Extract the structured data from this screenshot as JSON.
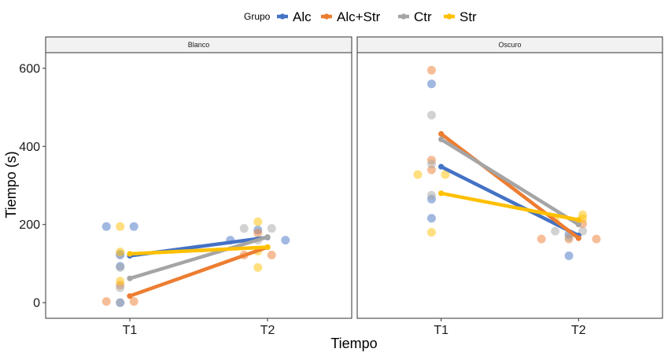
{
  "chart_data": {
    "type": "line",
    "xlabel": "Tiempo",
    "ylabel": "Tiempo (s)",
    "categories": [
      "T1",
      "T2"
    ],
    "ylim": [
      -40,
      640
    ],
    "yticks": [
      0,
      200,
      400,
      600
    ],
    "grid": false,
    "legend": {
      "title": "Grupo",
      "placement": "top",
      "items": [
        {
          "name": "Alc",
          "color": "#4472c4"
        },
        {
          "name": "Alc+Str",
          "color": "#ed7d31"
        },
        {
          "name": "Ctr",
          "color": "#a5a5a5"
        },
        {
          "name": "Str",
          "color": "#ffc000"
        }
      ]
    },
    "panels": [
      {
        "strip": "Blanco",
        "series": [
          {
            "name": "Alc",
            "color": "#4472c4",
            "means": [
              120,
              167
            ],
            "points": [
              {
                "x": "T1",
                "dx": -0.17,
                "y": 195
              },
              {
                "x": "T1",
                "dx": 0.03,
                "y": 195
              },
              {
                "x": "T1",
                "dx": -0.07,
                "y": 122
              },
              {
                "x": "T1",
                "dx": -0.07,
                "y": 93
              },
              {
                "x": "T1",
                "dx": -0.07,
                "y": 0
              },
              {
                "x": "T2",
                "dx": -0.27,
                "y": 160
              },
              {
                "x": "T2",
                "dx": 0.13,
                "y": 160
              },
              {
                "x": "T2",
                "dx": -0.07,
                "y": 186
              }
            ]
          },
          {
            "name": "Alc+Str",
            "color": "#ed7d31",
            "means": [
              17,
              142
            ],
            "points": [
              {
                "x": "T1",
                "dx": -0.17,
                "y": 3
              },
              {
                "x": "T1",
                "dx": 0.03,
                "y": 3
              },
              {
                "x": "T1",
                "dx": -0.07,
                "y": 45
              },
              {
                "x": "T2",
                "dx": -0.17,
                "y": 122
              },
              {
                "x": "T2",
                "dx": 0.03,
                "y": 122
              },
              {
                "x": "T2",
                "dx": -0.07,
                "y": 178
              }
            ]
          },
          {
            "name": "Ctr",
            "color": "#a5a5a5",
            "means": [
              62,
              168
            ],
            "points": [
              {
                "x": "T1",
                "dx": -0.07,
                "y": 125
              },
              {
                "x": "T1",
                "dx": -0.07,
                "y": 90
              },
              {
                "x": "T1",
                "dx": -0.07,
                "y": 38
              },
              {
                "x": "T1",
                "dx": -0.07,
                "y": 0
              },
              {
                "x": "T2",
                "dx": -0.17,
                "y": 190
              },
              {
                "x": "T2",
                "dx": 0.03,
                "y": 190
              },
              {
                "x": "T2",
                "dx": -0.07,
                "y": 160
              }
            ]
          },
          {
            "name": "Str",
            "color": "#ffc000",
            "means": [
              125,
              142
            ],
            "points": [
              {
                "x": "T1",
                "dx": -0.07,
                "y": 195
              },
              {
                "x": "T1",
                "dx": -0.07,
                "y": 130
              },
              {
                "x": "T1",
                "dx": -0.07,
                "y": 55
              },
              {
                "x": "T2",
                "dx": -0.07,
                "y": 207
              },
              {
                "x": "T2",
                "dx": -0.07,
                "y": 132
              },
              {
                "x": "T2",
                "dx": -0.07,
                "y": 90
              }
            ]
          }
        ]
      },
      {
        "strip": "Oscuro",
        "series": [
          {
            "name": "Alc",
            "color": "#4472c4",
            "means": [
              348,
              172
            ],
            "points": [
              {
                "x": "T1",
                "dx": -0.07,
                "y": 560
              },
              {
                "x": "T1",
                "dx": -0.07,
                "y": 265
              },
              {
                "x": "T1",
                "dx": -0.07,
                "y": 216
              },
              {
                "x": "T2",
                "dx": -0.07,
                "y": 120
              },
              {
                "x": "T2",
                "dx": -0.07,
                "y": 175
              }
            ]
          },
          {
            "name": "Alc+Str",
            "color": "#ed7d31",
            "means": [
              432,
              165
            ],
            "points": [
              {
                "x": "T1",
                "dx": -0.07,
                "y": 595
              },
              {
                "x": "T1",
                "dx": -0.07,
                "y": 365
              },
              {
                "x": "T1",
                "dx": -0.07,
                "y": 340
              },
              {
                "x": "T2",
                "dx": -0.27,
                "y": 163
              },
              {
                "x": "T2",
                "dx": 0.13,
                "y": 163
              },
              {
                "x": "T2",
                "dx": -0.07,
                "y": 163
              },
              {
                "x": "T2",
                "dx": 0.03,
                "y": 202
              }
            ]
          },
          {
            "name": "Ctr",
            "color": "#a5a5a5",
            "means": [
              418,
              200
            ],
            "points": [
              {
                "x": "T1",
                "dx": -0.07,
                "y": 480
              },
              {
                "x": "T1",
                "dx": -0.07,
                "y": 355
              },
              {
                "x": "T1",
                "dx": -0.07,
                "y": 275
              },
              {
                "x": "T2",
                "dx": -0.17,
                "y": 183
              },
              {
                "x": "T2",
                "dx": 0.03,
                "y": 183
              },
              {
                "x": "T2",
                "dx": -0.07,
                "y": 168
              }
            ]
          },
          {
            "name": "Str",
            "color": "#ffc000",
            "means": [
              280,
              212
            ],
            "points": [
              {
                "x": "T1",
                "dx": -0.17,
                "y": 328
              },
              {
                "x": "T1",
                "dx": 0.03,
                "y": 328
              },
              {
                "x": "T1",
                "dx": -0.07,
                "y": 180
              },
              {
                "x": "T2",
                "dx": -0.17,
                "y": 210
              },
              {
                "x": "T2",
                "dx": 0.03,
                "y": 215
              },
              {
                "x": "T2",
                "dx": 0.03,
                "y": 225
              }
            ]
          }
        ]
      }
    ]
  }
}
